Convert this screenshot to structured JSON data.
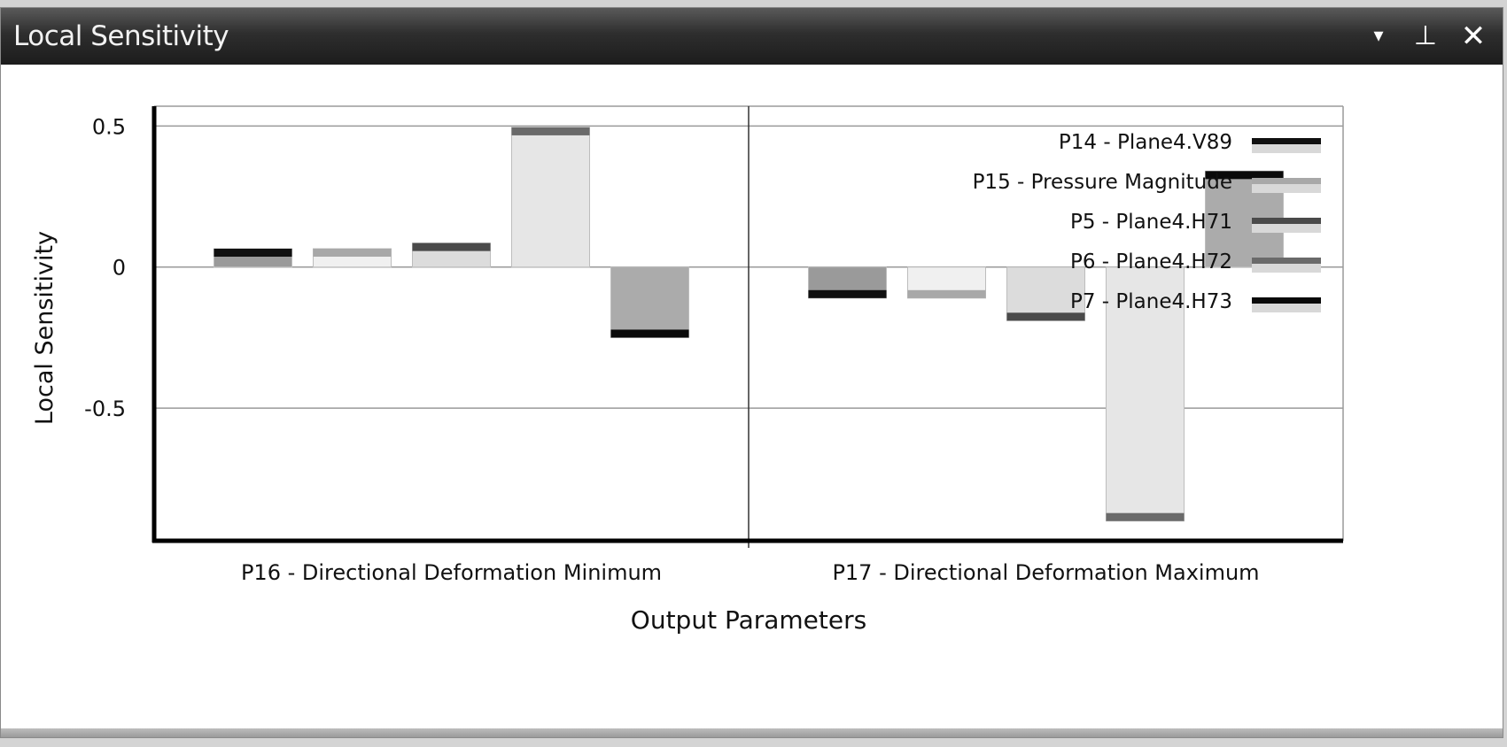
{
  "window": {
    "title": "Local Sensitivity",
    "buttons": {
      "dropdown": "▾",
      "pin": "⊥",
      "close": "✕"
    }
  },
  "chart_data": {
    "type": "bar",
    "title": "",
    "xlabel": "Output Parameters",
    "ylabel": "Local Sensitivity",
    "ylim": [
      -0.97,
      0.57
    ],
    "yticks": [
      0.5,
      0,
      -0.5
    ],
    "ytick_labels": [
      "0.5",
      "0",
      "-0.5"
    ],
    "grid": true,
    "legend_position": "top-right",
    "categories": [
      "P16 - Directional Deformation Minimum",
      "P17 - Directional Deformation Maximum"
    ],
    "series": [
      {
        "name": "P14 - Plane4.V89",
        "values": [
          0.065,
          -0.11
        ],
        "color": "#9a9a9a",
        "edge": "#101010"
      },
      {
        "name": "P15 - Pressure Magnitude",
        "values": [
          0.065,
          -0.11
        ],
        "color": "#f0f0f0",
        "edge": "#a8a8a8"
      },
      {
        "name": "P5 - Plane4.H71",
        "values": [
          0.085,
          -0.19
        ],
        "color": "#dcdcdc",
        "edge": "#4a4a4a"
      },
      {
        "name": "P6 - Plane4.H72",
        "values": [
          0.495,
          -0.9
        ],
        "color": "#e6e6e6",
        "edge": "#6a6a6a"
      },
      {
        "name": "P7 - Plane4.H73",
        "values": [
          -0.25,
          0.34
        ],
        "color": "#ababab",
        "edge": "#0a0a0a"
      }
    ]
  }
}
